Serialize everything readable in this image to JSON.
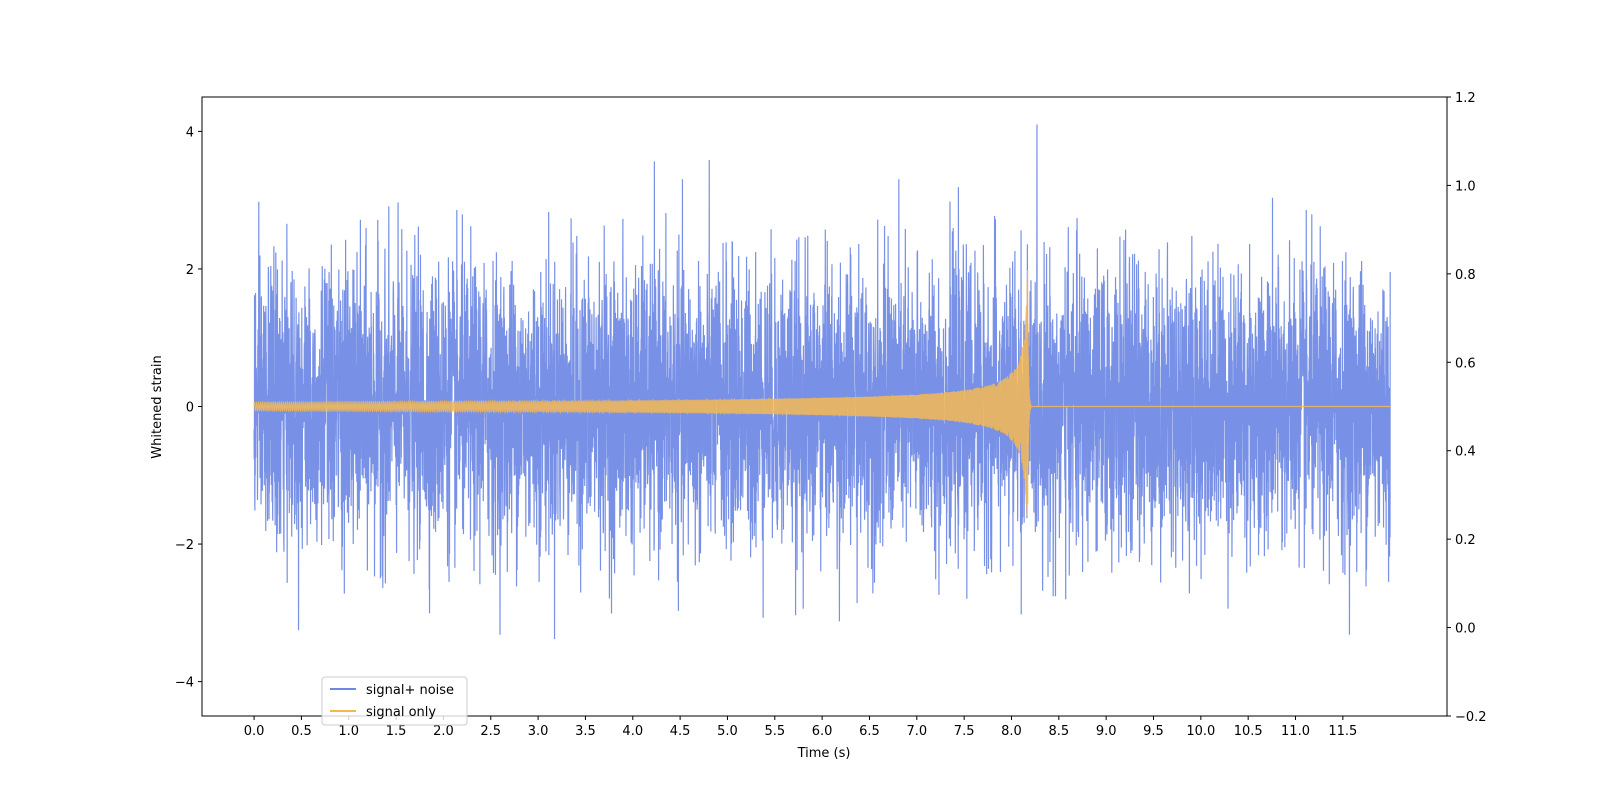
{
  "chart_data": {
    "type": "line",
    "title": "",
    "xlabel": "Time (s)",
    "ylabel": "Whitened strain",
    "xlim": [
      -0.55,
      12.6
    ],
    "ylim": [
      -4.5,
      4.5
    ],
    "y2lim": [
      -0.2,
      1.2
    ],
    "x_ticks": [
      "0.0",
      "0.5",
      "1.0",
      "1.5",
      "2.0",
      "2.5",
      "3.0",
      "3.5",
      "4.0",
      "4.5",
      "5.0",
      "5.5",
      "6.0",
      "6.5",
      "7.0",
      "7.5",
      "8.0",
      "8.5",
      "9.0",
      "9.5",
      "10.0",
      "10.5",
      "11.0",
      "11.5"
    ],
    "y_ticks": [
      "−4",
      "−2",
      "0",
      "2",
      "4"
    ],
    "y2_ticks": [
      "−0.2",
      "0.0",
      "0.2",
      "0.4",
      "0.6",
      "0.8",
      "1.0",
      "1.2"
    ],
    "series": [
      {
        "name": "signal+ noise",
        "color": "#6c88e4",
        "kind": "gaussian-noise",
        "x_range": [
          0.0,
          12.0
        ],
        "std": 1.0,
        "max": 4.1,
        "min": -4.1
      },
      {
        "name": "signal only",
        "color": "#f5b851",
        "kind": "chirp",
        "x_range": [
          0.0,
          12.0
        ],
        "merger_time": 8.17,
        "peak_amplitude": 2.2
      }
    ],
    "legend_position": "lower-left",
    "grid": false
  }
}
